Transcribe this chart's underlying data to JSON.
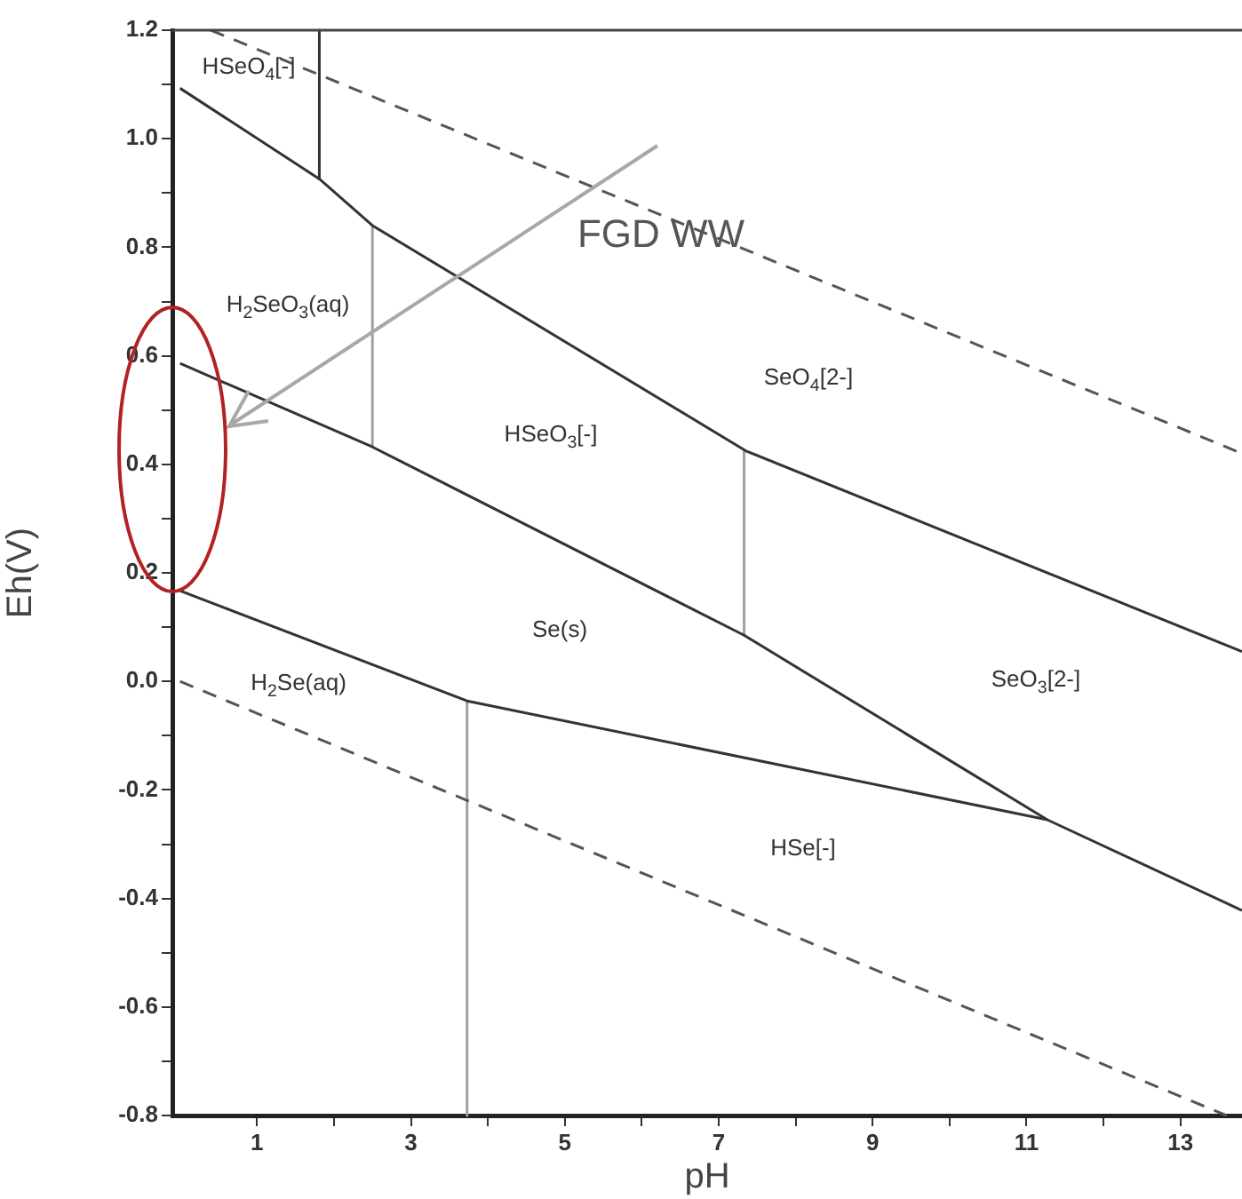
{
  "chart_data": {
    "type": "line",
    "xlabel": "pH",
    "ylabel": "Eh(V)",
    "xlim": [
      -0.1,
      13.8
    ],
    "ylim": [
      -0.8,
      1.2
    ],
    "xticks": [
      1,
      {
        "value": 2,
        "label": null
      },
      3,
      {
        "value": 4,
        "label": null
      },
      5,
      {
        "value": 6,
        "label": null
      },
      7,
      {
        "value": 8,
        "label": null
      },
      9,
      {
        "value": 10,
        "label": null
      },
      11,
      {
        "value": 12,
        "label": null
      },
      13
    ],
    "yticks": [
      {
        "value": -0.8,
        "label": "-0.8"
      },
      {
        "value": -0.7,
        "label": null
      },
      {
        "value": -0.6,
        "label": "-0.6"
      },
      {
        "value": -0.5,
        "label": null
      },
      {
        "value": -0.4,
        "label": "-0.4"
      },
      {
        "value": -0.3,
        "label": null
      },
      {
        "value": -0.2,
        "label": "-0.2"
      },
      {
        "value": -0.1,
        "label": null
      },
      {
        "value": 0,
        "label": "0.0"
      },
      {
        "value": 0.1,
        "label": null
      },
      {
        "value": 0.2,
        "label": "0.2"
      },
      {
        "value": 0.3,
        "label": null
      },
      {
        "value": 0.4,
        "label": "0.4"
      },
      {
        "value": 0.5,
        "label": null
      },
      {
        "value": 0.6,
        "label": "0.6"
      },
      {
        "value": 0.7,
        "label": null
      },
      {
        "value": 0.8,
        "label": "0.8"
      },
      {
        "value": 0.9,
        "label": null
      },
      {
        "value": 1,
        "label": "1.0"
      },
      {
        "value": 1.1,
        "label": null
      },
      {
        "value": 1.2,
        "label": "1.2"
      }
    ],
    "grid": false,
    "legend": false,
    "marker": "none",
    "series": [
      {
        "color": "#555555",
        "line_style": "dashed",
        "x": [
          0.4,
          13.8
        ],
        "values": [
          1.2,
          0.42
        ]
      },
      {
        "color": "#555555",
        "line_style": "dashed",
        "x": [
          0,
          13.6
        ],
        "values": [
          0,
          -0.8
        ]
      },
      {
        "color": "#333333",
        "line_style": "solid",
        "x": [
          0,
          1.81,
          2.5,
          7.35,
          13.8
        ],
        "values": [
          1.093,
          0.926,
          0.84,
          0.425,
          0.055
        ]
      },
      {
        "color": "#333333",
        "line_style": "solid",
        "x": [
          0,
          2.5,
          7.33,
          11.27,
          13.8
        ],
        "values": [
          0.586,
          0.432,
          0.085,
          -0.255,
          -0.422
        ]
      },
      {
        "color": "#333333",
        "line_style": "solid",
        "x": [
          0,
          3.73,
          11.27
        ],
        "values": [
          0.167,
          -0.036,
          -0.255
        ]
      },
      {
        "color": "#333333",
        "line_style": "solid",
        "x": [
          1.81,
          1.81
        ],
        "values": [
          1.2,
          0.926
        ]
      },
      {
        "color": "#a0a0a0",
        "line_style": "solid",
        "x": [
          2.5,
          2.5
        ],
        "values": [
          0.84,
          0.432
        ]
      },
      {
        "color": "#a0a0a0",
        "line_style": "solid",
        "x": [
          7.33,
          7.33
        ],
        "values": [
          0.425,
          0.085
        ]
      },
      {
        "color": "#a0a0a0",
        "line_style": "solid",
        "x": [
          3.73,
          3.73
        ],
        "values": [
          -0.036,
          -0.8
        ]
      }
    ],
    "annotations": [
      "HSeO$_{4}$[-]",
      "H$_{2}$SeO$_{3}$(aq)",
      "HSeO$_{3}$[-]",
      "SeO$_{4}$[2-]",
      "Se(s)",
      "H$_{2}$Se(aq)",
      "SeO$_{3}$[2-]",
      "HSe[-]",
      "FGD WW"
    ]
  }
}
